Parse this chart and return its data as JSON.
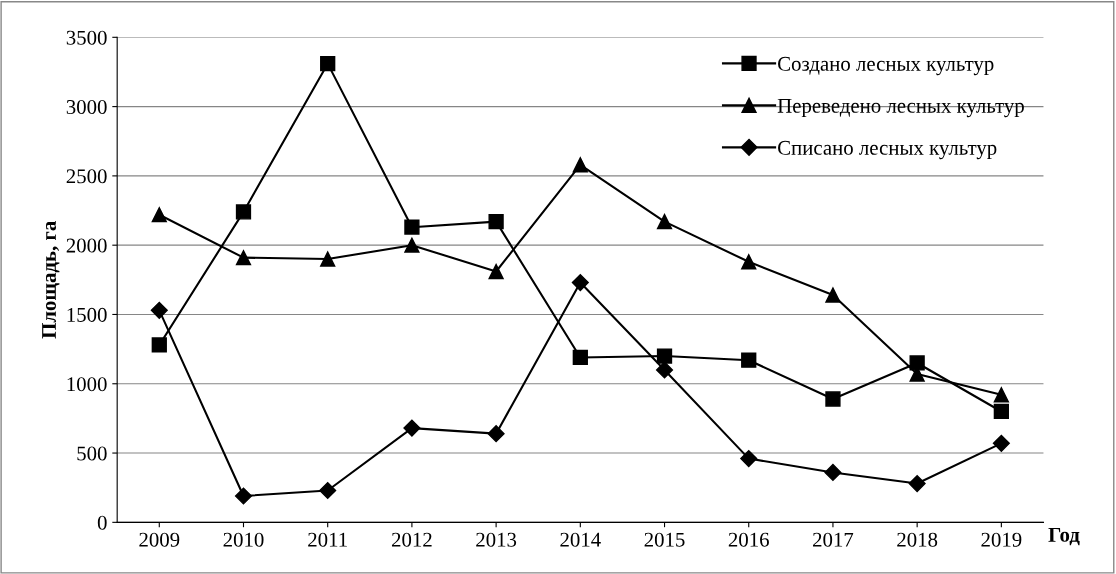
{
  "chart_data": {
    "type": "line",
    "xlabel": "Год",
    "ylabel": "Площадь, га",
    "categories": [
      "2009",
      "2010",
      "2011",
      "2012",
      "2013",
      "2014",
      "2015",
      "2016",
      "2017",
      "2018",
      "2019"
    ],
    "series": [
      {
        "name": "Создано лесных культур",
        "color": "#000000",
        "marker": "square",
        "values": [
          1280,
          2240,
          3310,
          2130,
          2170,
          1190,
          1200,
          1170,
          890,
          1150,
          800
        ]
      },
      {
        "name": "Переведено лесных культур",
        "color": "#000000",
        "marker": "triangle",
        "values": [
          2220,
          1910,
          1900,
          2000,
          1810,
          2580,
          2170,
          1880,
          1640,
          1070,
          920
        ]
      },
      {
        "name": "Списано лесных культур",
        "color": "#000000",
        "marker": "diamond",
        "values": [
          1530,
          190,
          230,
          680,
          640,
          1730,
          1100,
          460,
          360,
          280,
          570
        ]
      }
    ],
    "ylim": [
      0,
      3500
    ],
    "yticks": [
      0,
      500,
      1000,
      1500,
      2000,
      2500,
      3000,
      3500
    ],
    "grid": "y",
    "legend": "top right",
    "line_style": "solid"
  }
}
